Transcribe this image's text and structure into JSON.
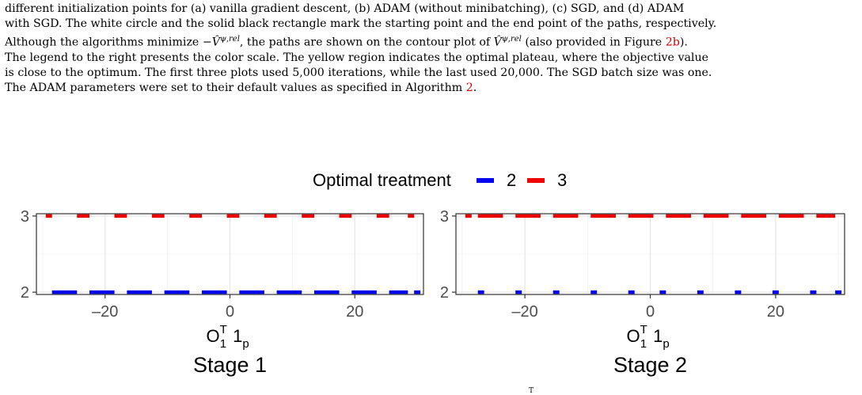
{
  "caption": {
    "line1": "different initialization points for (a) vanilla gradient descent, (b) ADAM (without minibatching), (c) SGD, and (d) ADAM",
    "line2": "with SGD. The white circle and the solid black rectangle mark the starting point and the end point of the paths, respectively.",
    "line3a": "Although the algorithms minimize",
    "line3_math1": "−V̂",
    "line3_sup1": "ψ,rel",
    "line3b": ", the paths are shown on the contour plot of",
    "line3_math2": "V̂",
    "line3_sup2": "ψ,rel",
    "line3c": " (also provided in Figure ",
    "line3_ref": "2b",
    "line3d": ").",
    "line4": "The legend to the right presents the color scale. The yellow region indicates the optimal plateau, where the objective value",
    "line5": "is close to the optimum. The first three plots used 5,000 iterations, while the last used 20,000. The SGD batch size was one.",
    "line6a": "The ADAM parameters were set to their default values as specified in Algorithm ",
    "line6_ref": "2",
    "line6b": ".",
    "bottom_fragment": "T"
  },
  "chart_data": {
    "type": "scatter",
    "legend": {
      "title": "Optimal treatment",
      "placement": "top-center",
      "entries": [
        {
          "label": "2",
          "color": "#0000ee"
        },
        {
          "label": "3",
          "color": "#ee0000"
        }
      ]
    },
    "panels": [
      {
        "title": "Stage 1",
        "xlabel_base": "O",
        "xlabel_sup": "T",
        "xlabel_sub": "1",
        "xlabel_tail": "1",
        "xlabel_tail_sub": "p",
        "xlim": [
          -31,
          31
        ],
        "ylim": [
          1.97,
          3.03
        ],
        "xticks": [
          -20,
          0,
          20
        ],
        "xtick_labels": [
          "–20",
          "0",
          "20"
        ],
        "yticks": [
          2,
          3
        ],
        "ytick_labels": [
          "2",
          "3"
        ],
        "grid": true,
        "segments": [
          {
            "treatment": 3,
            "x0": -29.5,
            "x1": -28.5
          },
          {
            "treatment": 3,
            "x0": -24.5,
            "x1": -22.5
          },
          {
            "treatment": 3,
            "x0": -18.5,
            "x1": -16.5
          },
          {
            "treatment": 3,
            "x0": -12.5,
            "x1": -10.5
          },
          {
            "treatment": 3,
            "x0": -6.5,
            "x1": -4.5
          },
          {
            "treatment": 3,
            "x0": -0.5,
            "x1": 1.5
          },
          {
            "treatment": 3,
            "x0": 5.5,
            "x1": 7.5
          },
          {
            "treatment": 3,
            "x0": 11.5,
            "x1": 13.5
          },
          {
            "treatment": 3,
            "x0": 17.5,
            "x1": 19.5
          },
          {
            "treatment": 3,
            "x0": 23.5,
            "x1": 25.5
          },
          {
            "treatment": 3,
            "x0": 28.5,
            "x1": 29.5
          },
          {
            "treatment": 2,
            "x0": -28.5,
            "x1": -24.5
          },
          {
            "treatment": 2,
            "x0": -22.5,
            "x1": -18.5
          },
          {
            "treatment": 2,
            "x0": -16.5,
            "x1": -12.5
          },
          {
            "treatment": 2,
            "x0": -10.5,
            "x1": -6.5
          },
          {
            "treatment": 2,
            "x0": -4.5,
            "x1": -0.5
          },
          {
            "treatment": 2,
            "x0": 1.5,
            "x1": 5.5
          },
          {
            "treatment": 2,
            "x0": 7.5,
            "x1": 11.5
          },
          {
            "treatment": 2,
            "x0": 13.5,
            "x1": 17.5
          },
          {
            "treatment": 2,
            "x0": 19.5,
            "x1": 23.5
          },
          {
            "treatment": 2,
            "x0": 25.5,
            "x1": 28.5
          },
          {
            "treatment": 2,
            "x0": 29.5,
            "x1": 30.5
          }
        ]
      },
      {
        "title": "Stage 2",
        "xlabel_base": "O",
        "xlabel_sup": "T",
        "xlabel_sub": "1",
        "xlabel_tail": "1",
        "xlabel_tail_sub": "p",
        "xlim": [
          -31,
          31
        ],
        "ylim": [
          1.97,
          3.03
        ],
        "xticks": [
          -20,
          0,
          20
        ],
        "xtick_labels": [
          "–20",
          "0",
          "20"
        ],
        "yticks": [
          2,
          3
        ],
        "ytick_labels": [
          "2",
          "3"
        ],
        "grid": true,
        "segments": [
          {
            "treatment": 3,
            "x0": -29.5,
            "x1": -28.5
          },
          {
            "treatment": 3,
            "x0": -27.5,
            "x1": -23.5
          },
          {
            "treatment": 3,
            "x0": -21.5,
            "x1": -17.5
          },
          {
            "treatment": 3,
            "x0": -15.5,
            "x1": -11.5
          },
          {
            "treatment": 3,
            "x0": -9.5,
            "x1": -5.5
          },
          {
            "treatment": 3,
            "x0": -3.5,
            "x1": 0.5
          },
          {
            "treatment": 3,
            "x0": 2.5,
            "x1": 6.5
          },
          {
            "treatment": 3,
            "x0": 8.5,
            "x1": 12.5
          },
          {
            "treatment": 3,
            "x0": 14.5,
            "x1": 18.5
          },
          {
            "treatment": 3,
            "x0": 20.5,
            "x1": 24.5
          },
          {
            "treatment": 3,
            "x0": 26.5,
            "x1": 29.5
          },
          {
            "treatment": 2,
            "x0": -27.5,
            "x1": -26.5
          },
          {
            "treatment": 2,
            "x0": -21.5,
            "x1": -20.5
          },
          {
            "treatment": 2,
            "x0": -15.5,
            "x1": -14.5
          },
          {
            "treatment": 2,
            "x0": -9.5,
            "x1": -8.5
          },
          {
            "treatment": 2,
            "x0": -3.5,
            "x1": -2.5
          },
          {
            "treatment": 2,
            "x0": 1.5,
            "x1": 2.5
          },
          {
            "treatment": 2,
            "x0": 7.5,
            "x1": 8.5
          },
          {
            "treatment": 2,
            "x0": 13.5,
            "x1": 14.5
          },
          {
            "treatment": 2,
            "x0": 19.5,
            "x1": 20.5
          },
          {
            "treatment": 2,
            "x0": 25.5,
            "x1": 26.5
          },
          {
            "treatment": 2,
            "x0": 29.5,
            "x1": 30.5
          }
        ]
      }
    ]
  }
}
